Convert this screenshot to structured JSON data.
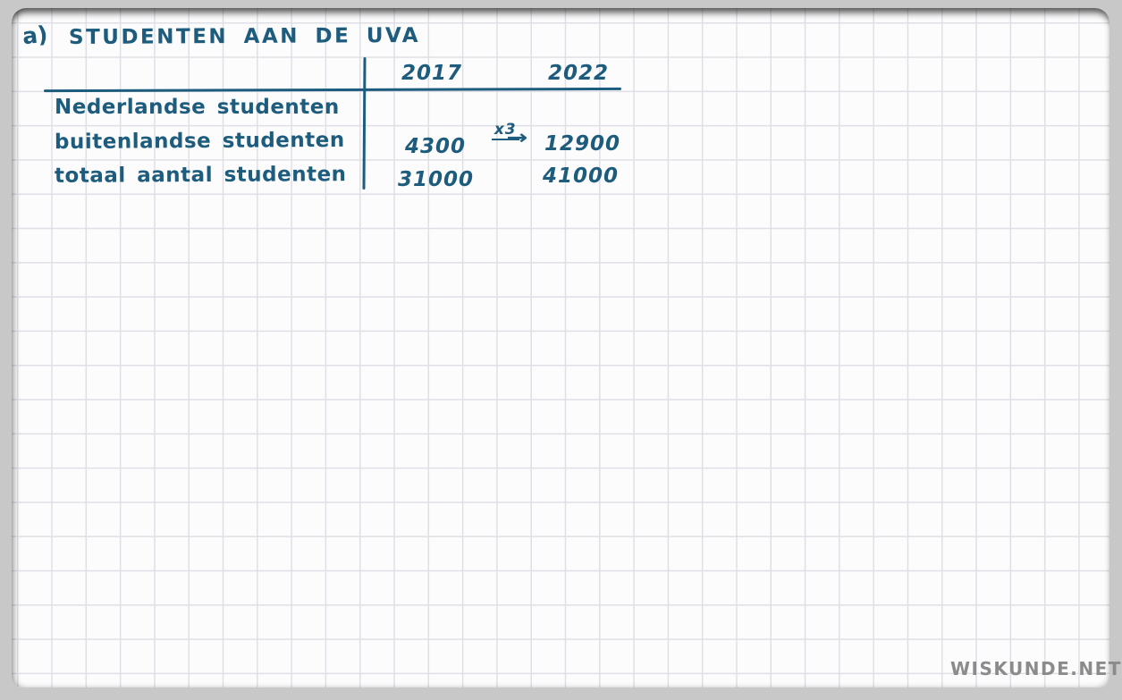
{
  "page": {
    "item_label": "a)",
    "title": "STUDENTEN AAN DE UVA",
    "watermark": "WISKUNDE.NET"
  },
  "table": {
    "columns": [
      "2017",
      "2022"
    ],
    "rows": [
      {
        "label": "Nederlandse studenten",
        "y2017": "",
        "y2022": ""
      },
      {
        "label": "buitenlandse studenten",
        "y2017": "4300",
        "y2022": "12900"
      },
      {
        "label": "totaal aantal studenten",
        "y2017": "31000",
        "y2022": "41000"
      }
    ],
    "annotation": {
      "factor_label": "x3",
      "arrow": "→"
    }
  },
  "colors": {
    "ink": "#1e5c7e",
    "grid_line": "#dfdfe6",
    "board_background": "#fcfcfd",
    "frame_background": "#c8c8c8",
    "watermark": "#8b8b8b"
  }
}
